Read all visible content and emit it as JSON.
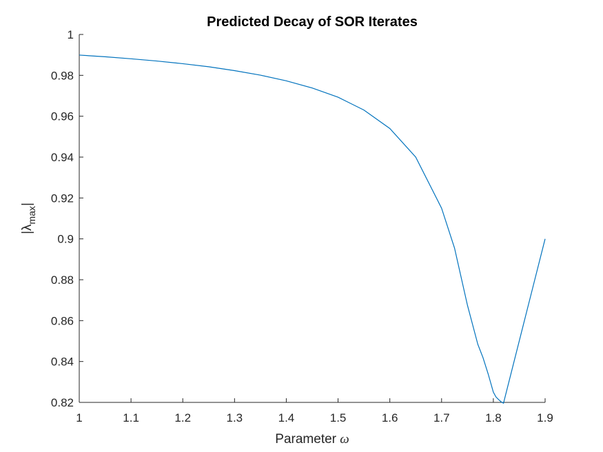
{
  "chart_data": {
    "type": "line",
    "title": "Predicted Decay of SOR Iterates",
    "xlabel_text": "Parameter ",
    "xlabel_symbol": "ω",
    "ylabel_main": "|λ",
    "ylabel_sub": "max",
    "ylabel_close": "|",
    "xlim": [
      1,
      1.9
    ],
    "ylim": [
      0.82,
      1
    ],
    "xticks": [
      "1",
      "1.1",
      "1.2",
      "1.3",
      "1.4",
      "1.5",
      "1.6",
      "1.7",
      "1.8",
      "1.9"
    ],
    "yticks": [
      "0.82",
      "0.84",
      "0.86",
      "0.88",
      "0.9",
      "0.92",
      "0.94",
      "0.96",
      "0.98",
      "1"
    ],
    "grid": false,
    "series_color": "#0072BD",
    "series": [
      {
        "x": [
          1.0,
          1.05,
          1.1,
          1.15,
          1.2,
          1.25,
          1.3,
          1.35,
          1.4,
          1.45,
          1.5,
          1.55,
          1.6,
          1.65,
          1.7,
          1.725,
          1.75,
          1.77,
          1.78,
          1.79,
          1.8,
          1.805,
          1.81,
          1.815,
          1.8196,
          1.84,
          1.86,
          1.88,
          1.9
        ],
        "y": [
          0.9899,
          0.9891,
          0.9881,
          0.987,
          0.9857,
          0.9842,
          0.9823,
          0.9801,
          0.9773,
          0.9738,
          0.9693,
          0.963,
          0.954,
          0.94,
          0.915,
          0.8955,
          0.8675,
          0.8484,
          0.8419,
          0.8339,
          0.825,
          0.8227,
          0.8214,
          0.8203,
          0.8196,
          0.84,
          0.86,
          0.88,
          0.9
        ]
      }
    ]
  }
}
